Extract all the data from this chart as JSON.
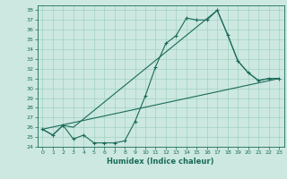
{
  "xlabel": "Humidex (Indice chaleur)",
  "xlim": [
    -0.5,
    23.5
  ],
  "ylim": [
    24,
    38.5
  ],
  "xticks": [
    0,
    1,
    2,
    3,
    4,
    5,
    6,
    7,
    8,
    9,
    10,
    11,
    12,
    13,
    14,
    15,
    16,
    17,
    18,
    19,
    20,
    21,
    22,
    23
  ],
  "yticks": [
    24,
    25,
    26,
    27,
    28,
    29,
    30,
    31,
    32,
    33,
    34,
    35,
    36,
    37,
    38
  ],
  "bg_color": "#cce8e0",
  "line_color": "#1a6b5a",
  "grid_color": "#99ccbb",
  "line1_x": [
    0,
    1,
    2,
    3,
    4,
    5,
    6,
    7,
    8,
    9,
    10,
    11,
    12,
    13,
    14,
    15,
    16,
    17,
    18,
    19,
    20,
    21,
    22,
    23
  ],
  "line1_y": [
    25.8,
    25.2,
    26.2,
    24.8,
    25.2,
    24.4,
    24.4,
    24.4,
    24.6,
    26.6,
    29.2,
    32.2,
    34.6,
    35.4,
    37.2,
    37.0,
    37.0,
    38.0,
    35.5,
    32.8,
    31.6,
    30.8,
    31.0,
    31.0
  ],
  "line2_x": [
    0,
    1,
    2,
    3,
    17,
    18,
    19,
    20,
    21,
    22,
    23
  ],
  "line2_y": [
    25.8,
    25.2,
    26.2,
    26.0,
    38.0,
    35.5,
    32.8,
    31.6,
    30.8,
    31.0,
    31.0
  ],
  "line3_x": [
    0,
    23
  ],
  "line3_y": [
    25.8,
    31.0
  ]
}
